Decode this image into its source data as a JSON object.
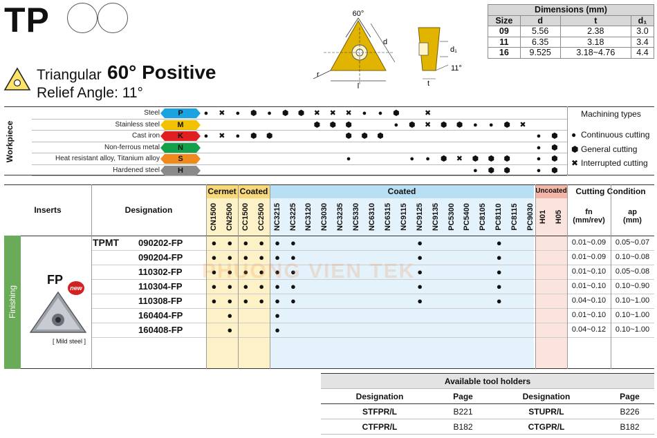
{
  "header": {
    "title": "TP",
    "shape_name": "Triangular",
    "shape_angle": "60° Positive",
    "relief_angle": "Relief Angle: 11°"
  },
  "diagram": {
    "angle_label": "60°",
    "labels": {
      "d": "d",
      "r": "r",
      "l": "l",
      "d1": "d₁",
      "t": "t",
      "relief": "11°"
    }
  },
  "dimensions": {
    "title": "Dimensions (mm)",
    "columns": [
      "Size",
      "d",
      "t",
      "d₁"
    ],
    "rows": [
      [
        "09",
        "5.56",
        "2.38",
        "3.0"
      ],
      [
        "11",
        "6.35",
        "3.18",
        "3.4"
      ],
      [
        "16",
        "9.525",
        "3.18~4.76",
        "4.4"
      ]
    ]
  },
  "workpiece": {
    "label": "Workpiece",
    "rows": [
      {
        "name": "Steel",
        "tag": "P",
        "color": "#1aa3e0"
      },
      {
        "name": "Stainless steel",
        "tag": "M",
        "color": "#f2c200"
      },
      {
        "name": "Cast iron",
        "tag": "K",
        "color": "#e02020"
      },
      {
        "name": "Non-ferrous metal",
        "tag": "N",
        "color": "#12a14a"
      },
      {
        "name": "Heat resistant alloy, Titanium alloy",
        "tag": "S",
        "color": "#f08a1c"
      },
      {
        "name": "Hardened steel",
        "tag": "H",
        "color": "#8a8a8a"
      }
    ],
    "machining": {
      "title": "Machining types",
      "items": [
        {
          "symbol": "●",
          "label": "Continuous cutting"
        },
        {
          "symbol": "⬢",
          "label": "General cutting"
        },
        {
          "symbol": "✖",
          "label": "Interrupted cutting"
        }
      ]
    }
  },
  "table": {
    "inserts_header": "Inserts",
    "designation_header": "Designation",
    "groups": [
      {
        "label": "Cermet",
        "color": "#fbe6a6"
      },
      {
        "label": "Coated",
        "color": "#fbe6a6"
      },
      {
        "label": "Coated",
        "color": "#c7e5f7"
      },
      {
        "label": "Uncoated",
        "color": "#f6c9c0"
      }
    ],
    "grades": [
      "CN1500",
      "CN2500",
      "CC1500",
      "CC2500",
      "NC3215",
      "NC3225",
      "NC3120",
      "NC3030",
      "NC3235",
      "NC5330",
      "NC6310",
      "NC6315",
      "NC9115",
      "NC9125",
      "NC9135",
      "PC5300",
      "PC5400",
      "PC8105",
      "PC8110",
      "PC8115",
      "PC9030",
      "H01",
      "H05"
    ],
    "cutting_condition": {
      "title": "Cutting Condition",
      "fn": "fn",
      "fn_unit": "(mm/rev)",
      "ap": "ap",
      "ap_unit": "(mm)"
    },
    "section_label": "Finishing",
    "insert_name": "FP",
    "new_badge": "new",
    "insert_note": "[ Mild steel ]",
    "prefix": "TPMT",
    "rows": [
      {
        "designation": "090202-FP",
        "fn": "0.01~0.09",
        "ap": "0.05~0.07",
        "dots": [
          0,
          1,
          2,
          3,
          4,
          5,
          13,
          18
        ]
      },
      {
        "designation": "090204-FP",
        "fn": "0.01~0.09",
        "ap": "0.10~0.08",
        "dots": [
          0,
          1,
          2,
          3,
          4,
          5,
          13,
          18
        ]
      },
      {
        "designation": "110302-FP",
        "fn": "0.01~0.10",
        "ap": "0.05~0.08",
        "dots": [
          0,
          1,
          2,
          3,
          4,
          5,
          13,
          18
        ]
      },
      {
        "designation": "110304-FP",
        "fn": "0.01~0.10",
        "ap": "0.10~0.90",
        "dots": [
          0,
          1,
          2,
          3,
          4,
          5,
          13,
          18
        ]
      },
      {
        "designation": "110308-FP",
        "fn": "0.04~0.10",
        "ap": "0.10~1.00",
        "dots": [
          0,
          1,
          2,
          3,
          4,
          5,
          13,
          18
        ]
      },
      {
        "designation": "160404-FP",
        "fn": "0.01~0.10",
        "ap": "0.10~1.00",
        "dots": [
          1,
          4
        ]
      },
      {
        "designation": "160408-FP",
        "fn": "0.04~0.12",
        "ap": "0.10~1.00",
        "dots": [
          1,
          4
        ]
      }
    ]
  },
  "tool_holders": {
    "title": "Available tool holders",
    "headers": [
      "Designation",
      "Page",
      "Designation",
      "Page"
    ],
    "rows": [
      [
        "STFPR/L",
        "B221",
        "STUPR/L",
        "B226"
      ],
      [
        "CTFPR/L",
        "B182",
        "CTGPR/L",
        "B182"
      ]
    ]
  },
  "watermark": "PHUONG VIEN TEK"
}
